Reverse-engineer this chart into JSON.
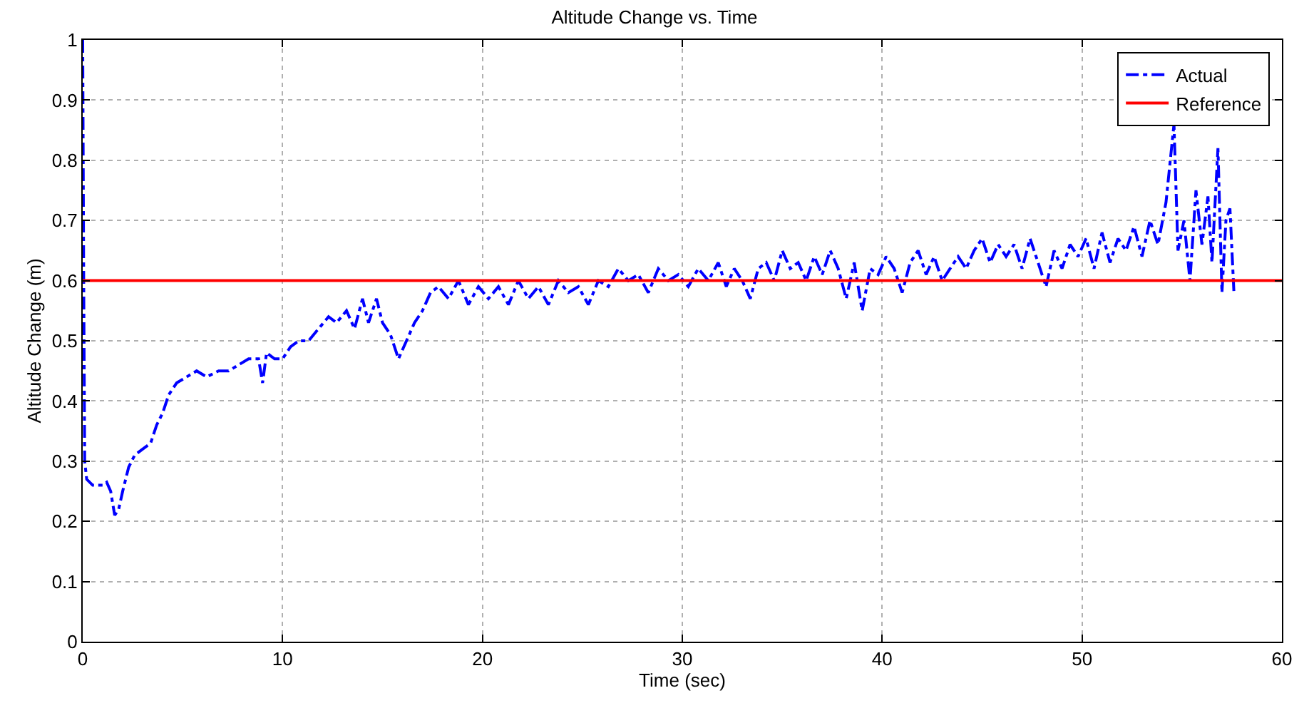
{
  "chart_data": {
    "type": "line",
    "title": "Altitude Change vs. Time",
    "xlabel": "Time (sec)",
    "ylabel": "Altitude Change (m)",
    "xlim": [
      0,
      60
    ],
    "xticks": [
      0,
      10,
      20,
      30,
      40,
      50,
      60
    ],
    "ylim": [
      0,
      1
    ],
    "yticks": [
      0,
      0.1,
      0.2,
      0.3,
      0.4,
      0.5,
      0.6,
      0.7,
      0.8,
      0.9,
      1
    ],
    "grid": true,
    "legend": "top right",
    "marker": "none",
    "series": [
      {
        "name": "Actual",
        "color": "#0000ff",
        "line_style": "dashdot",
        "x": [
          0,
          0.05,
          0.1,
          0.2,
          0.5,
          1.0,
          1.2,
          1.4,
          1.6,
          1.8,
          2.0,
          2.3,
          2.6,
          3.0,
          3.4,
          3.7,
          4.0,
          4.3,
          4.7,
          5.2,
          5.7,
          6.2,
          6.8,
          7.3,
          7.8,
          8.3,
          8.8,
          9.0,
          9.2,
          9.6,
          10,
          10.4,
          10.8,
          11.3,
          11.8,
          12.3,
          12.7,
          13.2,
          13.6,
          14,
          14.3,
          14.7,
          15.0,
          15.4,
          15.8,
          16.2,
          16.6,
          17.0,
          17.4,
          17.8,
          18.3,
          18.8,
          19.3,
          19.8,
          20.3,
          20.8,
          21.3,
          21.8,
          22.3,
          22.8,
          23.3,
          23.8,
          24.3,
          24.8,
          25.3,
          25.8,
          26.3,
          26.8,
          27.3,
          27.8,
          28.3,
          28.8,
          29.3,
          29.8,
          30.3,
          30.8,
          31.3,
          31.8,
          32.2,
          32.6,
          33.0,
          33.4,
          33.8,
          34.2,
          34.6,
          35.0,
          35.4,
          35.8,
          36.2,
          36.6,
          37.0,
          37.4,
          37.8,
          38.2,
          38.6,
          39.0,
          39.4,
          39.8,
          40.2,
          40.6,
          41.0,
          41.4,
          41.8,
          42.2,
          42.6,
          43.0,
          43.4,
          43.8,
          44.2,
          44.6,
          45.0,
          45.4,
          45.8,
          46.2,
          46.6,
          47.0,
          47.4,
          47.8,
          48.2,
          48.6,
          49.0,
          49.4,
          49.8,
          50.2,
          50.6,
          51.0,
          51.4,
          51.8,
          52.2,
          52.6,
          53.0,
          53.4,
          53.8,
          54.2,
          54.6,
          54.8,
          55.1,
          55.4,
          55.7,
          56.0,
          56.3,
          56.5,
          56.8,
          57.0,
          57.2,
          57.4,
          57.6
        ],
        "values": [
          1.0,
          0.6,
          0.3,
          0.27,
          0.26,
          0.26,
          0.265,
          0.25,
          0.21,
          0.22,
          0.25,
          0.29,
          0.31,
          0.32,
          0.33,
          0.36,
          0.38,
          0.41,
          0.43,
          0.44,
          0.45,
          0.44,
          0.45,
          0.45,
          0.46,
          0.47,
          0.47,
          0.43,
          0.48,
          0.47,
          0.47,
          0.49,
          0.5,
          0.5,
          0.52,
          0.54,
          0.53,
          0.55,
          0.52,
          0.57,
          0.53,
          0.57,
          0.53,
          0.51,
          0.47,
          0.5,
          0.53,
          0.55,
          0.58,
          0.59,
          0.57,
          0.6,
          0.56,
          0.59,
          0.57,
          0.59,
          0.56,
          0.6,
          0.57,
          0.59,
          0.56,
          0.6,
          0.58,
          0.59,
          0.56,
          0.6,
          0.59,
          0.62,
          0.6,
          0.61,
          0.58,
          0.62,
          0.6,
          0.61,
          0.59,
          0.62,
          0.6,
          0.63,
          0.59,
          0.62,
          0.6,
          0.57,
          0.62,
          0.63,
          0.6,
          0.65,
          0.62,
          0.63,
          0.6,
          0.64,
          0.61,
          0.65,
          0.62,
          0.57,
          0.63,
          0.55,
          0.62,
          0.61,
          0.64,
          0.62,
          0.58,
          0.63,
          0.65,
          0.61,
          0.64,
          0.6,
          0.62,
          0.64,
          0.62,
          0.65,
          0.67,
          0.63,
          0.66,
          0.64,
          0.66,
          0.62,
          0.67,
          0.63,
          0.59,
          0.65,
          0.62,
          0.66,
          0.64,
          0.67,
          0.62,
          0.68,
          0.63,
          0.67,
          0.65,
          0.69,
          0.64,
          0.7,
          0.66,
          0.73,
          0.86,
          0.65,
          0.7,
          0.6,
          0.75,
          0.66,
          0.74,
          0.63,
          0.82,
          0.58,
          0.7,
          0.72,
          0.58
        ]
      },
      {
        "name": "Reference",
        "color": "#ff0000",
        "line_style": "solid",
        "x": [
          0,
          60
        ],
        "values": [
          0.6,
          0.6
        ]
      }
    ]
  }
}
